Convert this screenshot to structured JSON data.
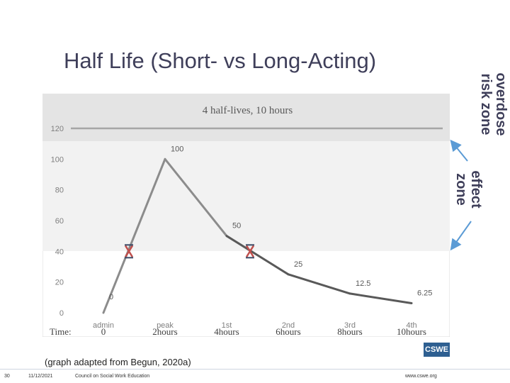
{
  "slide": {
    "title": "Half Life (Short- vs Long-Acting)",
    "overdose_label": [
      "overdose",
      "risk zone"
    ],
    "effect_label": [
      "effect",
      "zone"
    ],
    "caption": "(graph adapted from Begun, 2020a)",
    "logo_text": "CSWE",
    "footer": {
      "page": "30",
      "date": "11/12/2021",
      "org": "Council on Social Work Education",
      "url": "www.cswe.org"
    }
  },
  "chart_data": {
    "type": "line",
    "title": "4 half-lives, 10 hours",
    "categories": [
      "admin",
      "peak",
      "1st",
      "2nd",
      "3rd",
      "4th"
    ],
    "time_label": "Time:",
    "time_labels": [
      "0",
      "2hours",
      "4hours",
      "6hours",
      "8hours",
      "10hours"
    ],
    "values": [
      0,
      100,
      50,
      25,
      12.5,
      6.25
    ],
    "data_labels": [
      "0",
      "100",
      "50",
      "25",
      "12.5",
      "6.25"
    ],
    "ylim": [
      0,
      120
    ],
    "yticks": [
      0,
      20,
      40,
      60,
      80,
      100,
      120
    ],
    "threshold": 120,
    "markers": [
      {
        "x": "admin-peak",
        "y": 40,
        "label": "X"
      },
      {
        "x": "1st-2nd",
        "y": 40,
        "label": "X"
      }
    ],
    "colors": {
      "line_light": "#8c8c8c",
      "line_dark": "#595959",
      "threshold": "#a6a6a6",
      "marker": "#c0504d",
      "arrow": "#5b9bd5",
      "band_top": "#e4e4e4",
      "band_mid": "#f2f2f2"
    }
  }
}
